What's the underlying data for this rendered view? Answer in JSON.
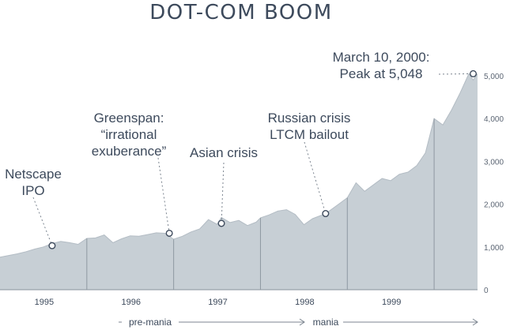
{
  "chart_data": {
    "type": "area",
    "title": "DOT-COM BOOM",
    "xlabel": "",
    "ylabel": "",
    "ylim": [
      0,
      5500
    ],
    "yticks": [
      "0",
      "1,000",
      "2,000",
      "3,000",
      "4,000",
      "5,000"
    ],
    "ytick_values": [
      0,
      1000,
      2000,
      3000,
      4000,
      5000
    ],
    "xticks": [
      "1995",
      "1996",
      "1997",
      "1998",
      "1999"
    ],
    "xtick_values": [
      1995.0,
      1996.0,
      1997.0,
      1998.0,
      1999.0
    ],
    "xlim": [
      1994.5,
      2000.0
    ],
    "colors": {
      "fill": "#c7cfd5",
      "line": "#3d4a5c",
      "text": "#3d4a5c"
    },
    "series": [
      {
        "x": [
          1994.5,
          1994.6,
          1994.7,
          1994.8,
          1994.9,
          1995.0,
          1995.1,
          1995.2,
          1995.3,
          1995.4,
          1995.5,
          1995.6,
          1995.7,
          1995.8,
          1995.9,
          1996.0,
          1996.1,
          1996.2,
          1996.3,
          1996.4,
          1996.5,
          1996.6,
          1996.7,
          1996.8,
          1996.9,
          1997.0,
          1997.05,
          1997.15,
          1997.25,
          1997.35,
          1997.45,
          1997.5,
          1997.6,
          1997.7,
          1997.8,
          1997.9,
          1998.0,
          1998.1,
          1998.2,
          1998.25,
          1998.3,
          1998.4,
          1998.5,
          1998.6,
          1998.7,
          1998.8,
          1998.9,
          1999.0,
          1999.1,
          1999.2,
          1999.3,
          1999.4,
          1999.5,
          1999.6,
          1999.7,
          1999.8,
          1999.9,
          1999.95,
          2000.0
        ],
        "values": [
          760,
          800,
          840,
          890,
          950,
          1000,
          1080,
          1130,
          1100,
          1060,
          1200,
          1210,
          1280,
          1100,
          1190,
          1260,
          1250,
          1290,
          1330,
          1320,
          1180,
          1250,
          1350,
          1420,
          1640,
          1530,
          1690,
          1570,
          1620,
          1500,
          1580,
          1680,
          1750,
          1840,
          1870,
          1760,
          1520,
          1660,
          1740,
          1780,
          1850,
          2000,
          2150,
          2500,
          2300,
          2450,
          2600,
          2550,
          2700,
          2750,
          2900,
          3200,
          4000,
          3850,
          4200,
          4600,
          5048,
          4900,
          5048
        ]
      }
    ],
    "phase_separators": [
      1995.5,
      1996.5,
      1997.5,
      1998.5,
      1999.5
    ],
    "annotations": [
      {
        "lines": [
          "Netscape",
          "IPO"
        ],
        "x": 1995.1,
        "y": 1030
      },
      {
        "lines": [
          "Greenspan:",
          "“irrational",
          "exuberance”"
        ],
        "x": 1996.45,
        "y": 1320
      },
      {
        "lines": [
          "Asian crisis"
        ],
        "x": 1997.05,
        "y": 1550
      },
      {
        "lines": [
          "Russian crisis",
          "LTCM bailout"
        ],
        "x": 1998.25,
        "y": 1780
      },
      {
        "lines": [
          "March 10, 2000:",
          "Peak at 5,048"
        ],
        "x": 1999.95,
        "y": 5048
      }
    ],
    "phases": [
      {
        "label": "pre-mania",
        "from": 1995.5,
        "to": 1998.45
      },
      {
        "label": "mania",
        "from": 1998.45,
        "to": 2000.0
      }
    ]
  }
}
